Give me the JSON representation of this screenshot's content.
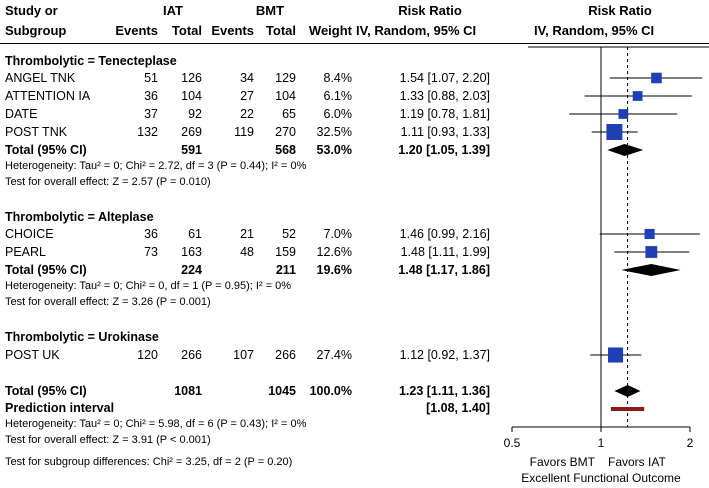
{
  "headers": {
    "study_l1": "Study or",
    "study_l2": "Subgroup",
    "iat": "IAT",
    "bmt": "BMT",
    "events1": "Events",
    "total1": "Total",
    "events2": "Events",
    "total2": "Total",
    "weight": "Weight",
    "rr_l1": "Risk Ratio",
    "rr_l2": "IV, Random, 95% CI",
    "rrplot_l1": "Risk Ratio",
    "rrplot_l2": "IV, Random, 95% CI"
  },
  "subgroups": [
    {
      "title": "Thrombolytic = Tenecteplase",
      "studies": [
        {
          "name": "ANGEL TNK",
          "e1": "51",
          "t1": "126",
          "e2": "34",
          "t2": "129",
          "w": "8.4%",
          "ci": "1.54 [1.07, 2.20]"
        },
        {
          "name": "ATTENTION IA",
          "e1": "36",
          "t1": "104",
          "e2": "27",
          "t2": "104",
          "w": "6.1%",
          "ci": "1.33 [0.88, 2.03]"
        },
        {
          "name": "DATE",
          "e1": "37",
          "t1": "92",
          "e2": "22",
          "t2": "65",
          "w": "6.0%",
          "ci": "1.19 [0.78, 1.81]"
        },
        {
          "name": "POST TNK",
          "e1": "132",
          "t1": "269",
          "e2": "119",
          "t2": "270",
          "w": "32.5%",
          "ci": "1.11 [0.93, 1.33]"
        }
      ],
      "total": {
        "label": "Total (95% CI)",
        "t1": "591",
        "t2": "568",
        "w": "53.0%",
        "ci": "1.20 [1.05, 1.39]"
      },
      "het": "Heterogeneity: Tau² = 0; Chi² = 2.72, df = 3 (P = 0.44); I² = 0%",
      "effect": "Test for overall effect: Z = 2.57 (P = 0.010)"
    },
    {
      "title": "Thrombolytic = Alteplase",
      "studies": [
        {
          "name": "CHOICE",
          "e1": "36",
          "t1": "61",
          "e2": "21",
          "t2": "52",
          "w": "7.0%",
          "ci": "1.46 [0.99, 2.16]"
        },
        {
          "name": "PEARL",
          "e1": "73",
          "t1": "163",
          "e2": "48",
          "t2": "159",
          "w": "12.6%",
          "ci": "1.48 [1.11, 1.99]"
        }
      ],
      "total": {
        "label": "Total (95% CI)",
        "t1": "224",
        "t2": "211",
        "w": "19.6%",
        "ci": "1.48 [1.17, 1.86]"
      },
      "het": "Heterogeneity: Tau² = 0; Chi² = 0, df = 1 (P = 0.95); I² = 0%",
      "effect": "Test for overall effect: Z = 3.26 (P = 0.001)"
    },
    {
      "title": "Thrombolytic = Urokinase",
      "studies": [
        {
          "name": "POST UK",
          "e1": "120",
          "t1": "266",
          "e2": "107",
          "t2": "266",
          "w": "27.4%",
          "ci": "1.12 [0.92, 1.37]"
        }
      ]
    }
  ],
  "overall": {
    "label": "Total (95% CI)",
    "t1": "1081",
    "t2": "1045",
    "w": "100.0%",
    "ci": "1.23 [1.11, 1.36]",
    "pi_label": "Prediction interval",
    "pi": "[1.08, 1.40]",
    "het": "Heterogeneity: Tau² = 0; Chi² = 5.98, df = 6 (P = 0.43); I² = 0%",
    "effect": "Test for overall effect: Z = 3.91 (P < 0.001)",
    "subgroup_diff": "Test for subgroup differences: Chi² = 3.25, df = 2 (P = 0.20)"
  },
  "axis": {
    "ticks": [
      "0.5",
      "1",
      "2"
    ],
    "left_label": "Favors BMT",
    "right_label": "Favors IAT",
    "outcome": "Excellent Functional Outcome"
  },
  "colors": {
    "square": "#1f3fb5",
    "diamond": "#000000",
    "prediction": "#8b1a1a"
  },
  "chart_data": {
    "type": "forest",
    "scale": "log",
    "xlim": [
      0.5,
      2
    ],
    "ticks": [
      0.5,
      1,
      2
    ],
    "studies": [
      {
        "name": "ANGEL TNK",
        "rr": 1.54,
        "lo": 1.07,
        "hi": 2.2,
        "weight": 8.4
      },
      {
        "name": "ATTENTION IA",
        "rr": 1.33,
        "lo": 0.88,
        "hi": 2.03,
        "weight": 6.1
      },
      {
        "name": "DATE",
        "rr": 1.19,
        "lo": 0.78,
        "hi": 1.81,
        "weight": 6.0
      },
      {
        "name": "POST TNK",
        "rr": 1.11,
        "lo": 0.93,
        "hi": 1.33,
        "weight": 32.5
      },
      {
        "name": "CHOICE",
        "rr": 1.46,
        "lo": 0.99,
        "hi": 2.16,
        "weight": 7.0
      },
      {
        "name": "PEARL",
        "rr": 1.48,
        "lo": 1.11,
        "hi": 1.99,
        "weight": 12.6
      },
      {
        "name": "POST UK",
        "rr": 1.12,
        "lo": 0.92,
        "hi": 1.37,
        "weight": 27.4
      }
    ],
    "diamonds": [
      {
        "name": "Tenecteplase total",
        "rr": 1.2,
        "lo": 1.05,
        "hi": 1.39
      },
      {
        "name": "Alteplase total",
        "rr": 1.48,
        "lo": 1.17,
        "hi": 1.86
      },
      {
        "name": "Overall total",
        "rr": 1.23,
        "lo": 1.11,
        "hi": 1.36
      }
    ],
    "prediction_interval": {
      "lo": 1.08,
      "hi": 1.4
    }
  }
}
